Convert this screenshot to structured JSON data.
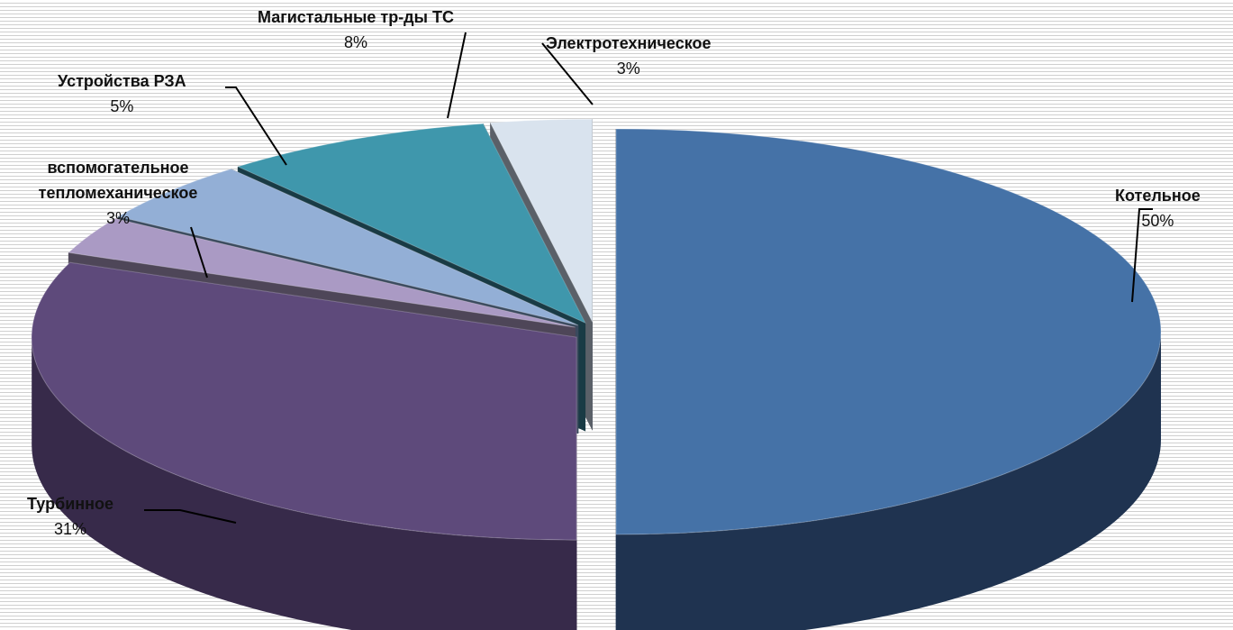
{
  "chart_data": {
    "type": "pie",
    "style": "3d-exploded",
    "slices": [
      {
        "label": "Котельное",
        "percent_label": "50%",
        "value": 50,
        "color": "#4572A7",
        "side": "#1F3350"
      },
      {
        "label": "Турбинное",
        "percent_label": "31%",
        "value": 31,
        "color": "#5E4A7B",
        "side": "#372A4A"
      },
      {
        "label": "вспомогательное тепломеханическое",
        "percent_label": "3%",
        "value": 3,
        "color": "#AA9AC4",
        "side": "#4E4658"
      },
      {
        "label": "Устройства РЗА",
        "percent_label": "5%",
        "value": 5,
        "color": "#93AFD6",
        "side": "#3A4A5E"
      },
      {
        "label": "Магистальные тр-ды ТС",
        "percent_label": "8%",
        "value": 8,
        "color": "#3F97AC",
        "side": "#193B45"
      },
      {
        "label": "Электротехническое",
        "percent_label": "3%",
        "value": 3,
        "color": "#D9E3EE",
        "side": "#5A6068"
      }
    ]
  }
}
